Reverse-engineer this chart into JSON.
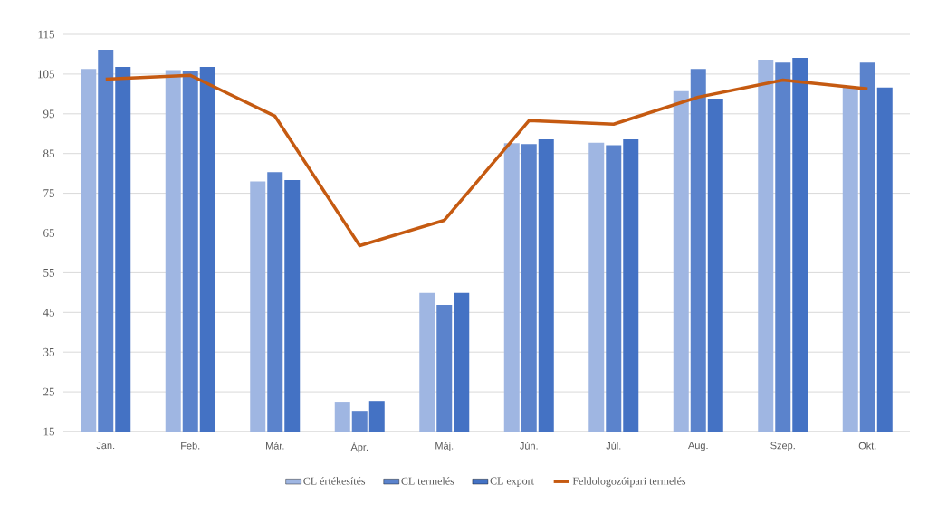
{
  "chart_data": {
    "type": "bar",
    "categories": [
      "Jan.",
      "Feb.",
      "Már.",
      "Ápr.",
      "Máj.",
      "Jún.",
      "Júl.",
      "Aug.",
      "Szep.",
      "Okt."
    ],
    "series": [
      {
        "name": "CL értékesítés",
        "color": "#9fb6e2",
        "values": [
          106.3,
          106.0,
          78.0,
          22.5,
          49.9,
          87.6,
          87.7,
          100.7,
          108.6,
          101.8
        ]
      },
      {
        "name": "CL termelés",
        "color": "#5b83cc",
        "values": [
          111.1,
          105.8,
          80.3,
          20.2,
          46.9,
          87.4,
          87.1,
          106.3,
          107.9,
          107.9
        ]
      },
      {
        "name": "CL export",
        "color": "#4472c4",
        "values": [
          106.8,
          106.8,
          78.3,
          22.7,
          49.9,
          88.6,
          88.6,
          98.8,
          109.1,
          101.6
        ]
      },
      {
        "name": "Feldologozóipari termelés",
        "type": "line",
        "color": "#c55a11",
        "values": [
          103.7,
          104.7,
          94.4,
          61.8,
          68.2,
          93.3,
          92.4,
          99.2,
          103.5,
          101.3
        ]
      }
    ],
    "ylim": [
      15,
      115
    ],
    "yticks": [
      15,
      25,
      35,
      45,
      55,
      65,
      75,
      85,
      95,
      105,
      115
    ],
    "grid": "y",
    "legend": "bottom"
  }
}
